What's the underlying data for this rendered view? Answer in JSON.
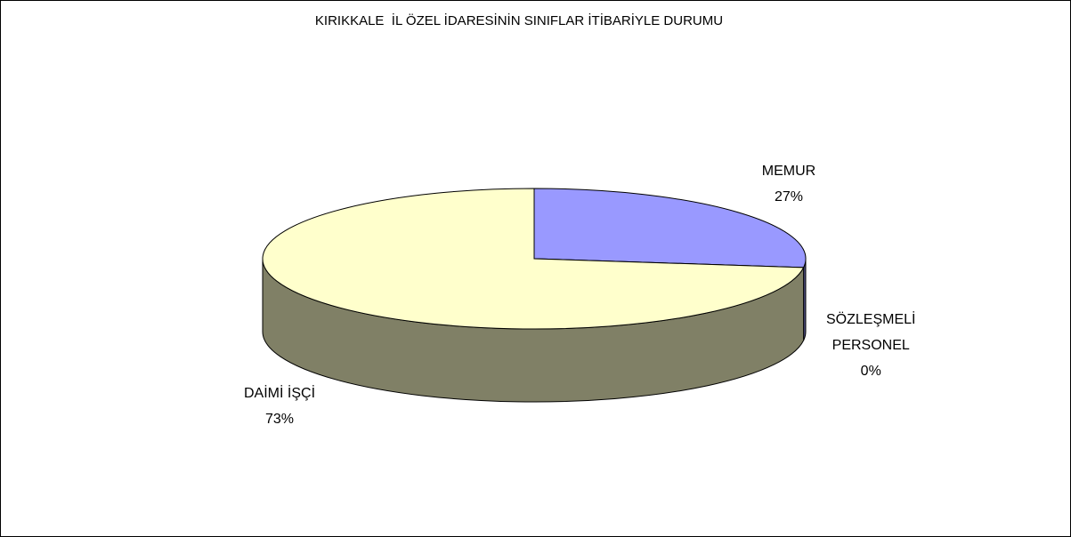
{
  "chart_data": {
    "type": "pie3d",
    "title": "KIRIKKALE  İL ÖZEL İDARESİNİN SINIFLAR İTİBARİYLE DURUMU",
    "categories": [
      "MEMUR",
      "SÖZLEŞMELİ PERSONEL",
      "DAİMİ İŞÇİ"
    ],
    "values": [
      27,
      0,
      73
    ],
    "value_labels": [
      "27%",
      "0%",
      "73%"
    ],
    "colors": [
      "#9999ff",
      "#993366",
      "#ffffcc"
    ]
  }
}
